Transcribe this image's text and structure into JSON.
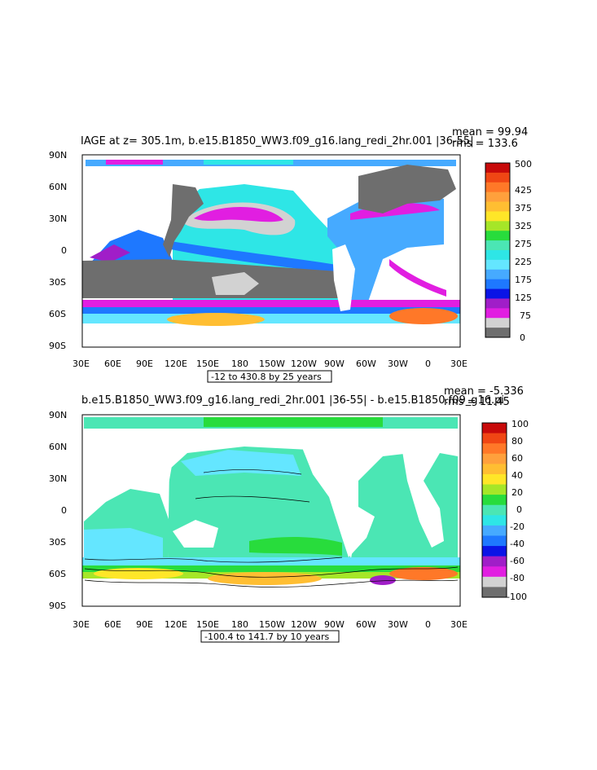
{
  "colors": {
    "land": "#6e6e6e",
    "gray_light": "#d2d2d2",
    "magenta": "#e11ee1",
    "purple": "#a01ec8",
    "blue": "#0a14e6",
    "blue_mid": "#1e78ff",
    "sky": "#46aaff",
    "cyan_light": "#64e6ff",
    "cyan": "#2ee6e6",
    "aqua": "#4be6b4",
    "green": "#28dc3c",
    "yellowgreen": "#a6e628",
    "yellow": "#ffe628",
    "gold": "#ffbe32",
    "orange_light": "#ffa03c",
    "orange": "#ff7828",
    "redorange": "#f04614",
    "red": "#c80a0a"
  },
  "panel_top": {
    "title": "IAGE at z= 305.1m, b.e15.B1850_WW3.f09_g16.lang_redi_2hr.001 |36-55|",
    "mean_label": "mean = 99.94",
    "rms_label": "rms = 133.6",
    "range_label": "-12 to 430.8 by 25 years",
    "colorbar_labels": [
      "500",
      "425",
      "375",
      "325",
      "275",
      "225",
      "175",
      "125",
      "75",
      "0"
    ],
    "colorbar_colors": [
      "red",
      "redorange",
      "orange",
      "orange_light",
      "gold",
      "yellow",
      "yellowgreen",
      "green",
      "aqua",
      "cyan",
      "cyan_light",
      "sky",
      "blue_mid",
      "blue",
      "purple",
      "magenta",
      "gray_light",
      "land"
    ]
  },
  "panel_bottom": {
    "title": "b.e15.B1850_WW3.f09_g16.lang_redi_2hr.001 |36-55| - b.e15.B1850.f09_g16.pi",
    "mean_label": "mean = -5.336",
    "rms_label": "rms = 11.45",
    "range_label": "-100.4 to 141.7 by 10 years",
    "colorbar_labels": [
      "100",
      "80",
      "60",
      "40",
      "20",
      "0",
      "-20",
      "-40",
      "-60",
      "-80",
      "-100"
    ],
    "colorbar_colors": [
      "red",
      "redorange",
      "orange",
      "orange_light",
      "gold",
      "yellow",
      "yellowgreen",
      "green",
      "aqua",
      "cyan",
      "sky",
      "blue_mid",
      "blue",
      "purple",
      "magenta",
      "gray_light",
      "land"
    ]
  },
  "axes": {
    "lat_labels": [
      "90N",
      "60N",
      "30N",
      "0",
      "30S",
      "60S",
      "90S"
    ],
    "lon_labels": [
      "30E",
      "60E",
      "90E",
      "120E",
      "150E",
      "180",
      "150W",
      "120W",
      "90W",
      "60W",
      "30W",
      "0",
      "30E"
    ]
  }
}
